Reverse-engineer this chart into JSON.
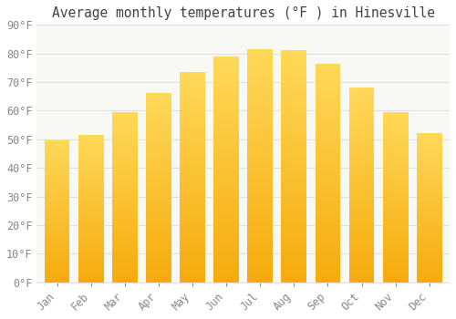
{
  "title": "Average monthly temperatures (°F ) in Hinesville",
  "months": [
    "Jan",
    "Feb",
    "Mar",
    "Apr",
    "May",
    "Jun",
    "Jul",
    "Aug",
    "Sep",
    "Oct",
    "Nov",
    "Dec"
  ],
  "values": [
    49.5,
    51.5,
    59.5,
    66.0,
    73.5,
    79.0,
    81.5,
    81.0,
    76.5,
    68.0,
    59.5,
    52.0
  ],
  "bar_color_top": "#FFCC55",
  "bar_color_bottom": "#F5A800",
  "background_color": "#FFFFFF",
  "plot_bg_color": "#F8F8F5",
  "ylim": [
    0,
    90
  ],
  "yticks": [
    0,
    10,
    20,
    30,
    40,
    50,
    60,
    70,
    80,
    90
  ],
  "grid_color": "#E0E0E0",
  "title_fontsize": 10.5,
  "tick_fontsize": 8.5,
  "tick_color": "#888888",
  "title_color": "#444444"
}
